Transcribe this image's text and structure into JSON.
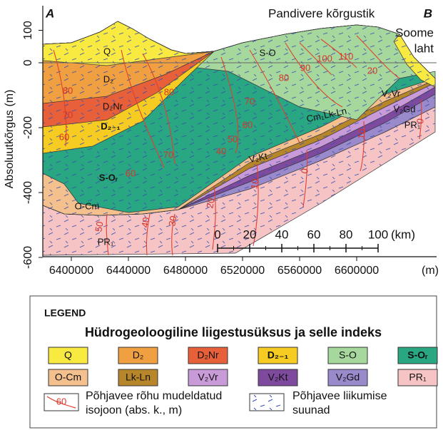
{
  "labels": {
    "left_end": "A",
    "right_end": "B",
    "upland": "Pandivere kõrgustik",
    "bay_line1": "Soome",
    "bay_line2": "laht"
  },
  "y_axis": {
    "title": "Absoluutkõrgus (m)",
    "ticks": [
      100,
      0,
      -200,
      -400,
      -600
    ]
  },
  "x_axis": {
    "unit": "(m)",
    "ticks": [
      6400000,
      6440000,
      6480000,
      6520000,
      6560000,
      6600000
    ]
  },
  "scale_bar": {
    "ticks": [
      0,
      20,
      40,
      60,
      80,
      100
    ],
    "unit": "(km)"
  },
  "section_labels": [
    "Q",
    "D₂",
    "D₂Nr",
    "D₂₋₁",
    "S-O",
    "S-Oᵣ",
    "O-Cm",
    "PR₁",
    "Cm₁Lk-Ln",
    "V₂Kt",
    "V₂Vr",
    "V₂Gd",
    "PR₁"
  ],
  "isoline_labels": [
    "80",
    "70",
    "60",
    "80",
    "70",
    "60",
    "80",
    "70",
    "60",
    "50",
    "40",
    "90",
    "100",
    "110",
    "20",
    "50",
    "40",
    "30",
    "20",
    "10",
    "0",
    "10",
    "0"
  ],
  "legend": {
    "heading": "LEGEND",
    "title": "Hüdrogeoloogiline liigestusüksus ja selle indeks",
    "units": [
      "Q",
      "D₂",
      "D₂Nr",
      "D₂₋₁",
      "S-O",
      "S-Oᵣ",
      "O-Cm",
      "Lk-Ln",
      "V₂Vr",
      "V₂Kt",
      "V₂Gd",
      "PR₁"
    ],
    "isoline_sample": "60",
    "isoline_text": [
      "Põhjavee rõhu mudeldatud",
      "isojoon (abs. k., m)"
    ],
    "flow_text": [
      "Põhjavee liikumise",
      "suunad"
    ]
  }
}
